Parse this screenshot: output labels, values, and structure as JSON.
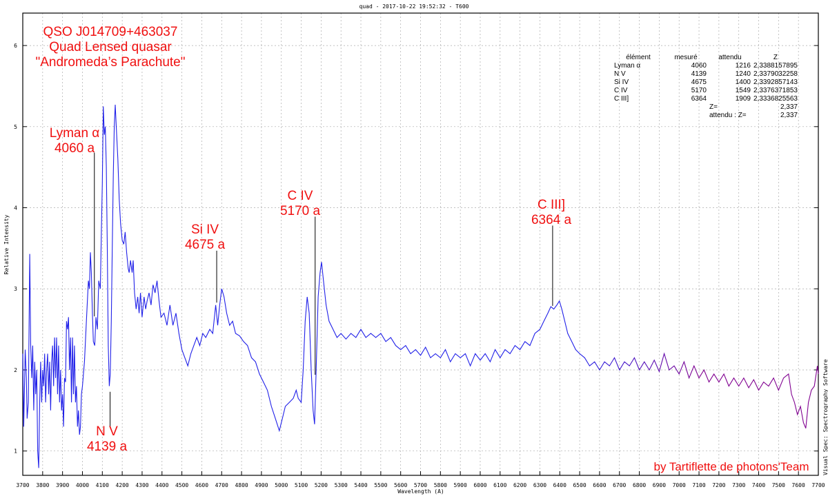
{
  "header": "quad - 2017-10-22 19:52:32 - T600",
  "software": "Visual Spec: Spectrography Software",
  "footer": "by Tartiflette de photons'Team",
  "titles": [
    "QSO J014709+463037",
    "Quad Lensed quasar",
    "\"Andromeda’s Parachute\""
  ],
  "table": {
    "headers": [
      "élément",
      "mesuré",
      "attendu",
      "Z"
    ],
    "rows": [
      [
        "Lyman α",
        "4060",
        "1216",
        "2,3388157895"
      ],
      [
        "N V",
        "4139",
        "1240",
        "2,3379032258"
      ],
      [
        "Si IV",
        "4675",
        "1400",
        "2,3392857143"
      ],
      [
        "C IV",
        "5170",
        "1549",
        "2,3376371853"
      ],
      [
        "C III]",
        "6364",
        "1909",
        "2,3336825563"
      ]
    ],
    "z_label": "Z=",
    "z_value": "2,337",
    "expected_label": "attendu : Z=",
    "expected_value": "2,337"
  },
  "chart_data": {
    "type": "line",
    "title": "quad - 2017-10-22 19:52:32 - T600",
    "xlabel": "Wavelength (A)",
    "ylabel": "Relative Intensity",
    "xlim": [
      3700,
      7700
    ],
    "ylim": [
      0.7,
      6.4
    ],
    "xticks": [
      3700,
      3800,
      3900,
      4000,
      4100,
      4200,
      4300,
      4400,
      4500,
      4600,
      4700,
      4800,
      4900,
      5000,
      5100,
      5200,
      5300,
      5400,
      5500,
      5600,
      5700,
      5800,
      5900,
      6000,
      6100,
      6200,
      6300,
      6400,
      6500,
      6600,
      6700,
      6800,
      6900,
      7000,
      7100,
      7200,
      7300,
      7400,
      7500,
      7600,
      7700
    ],
    "yticks": [
      1,
      2,
      3,
      4,
      5,
      6
    ],
    "grid": true,
    "colors": {
      "line_start": "#2020e8",
      "line_end": "#800090",
      "annotation": "#f01010",
      "marker": "#000000"
    },
    "annotations": [
      {
        "label": "Lyman α",
        "sub": "4060 a",
        "wavelength": 4060,
        "y_from": 2.66,
        "y_to": 4.68
      },
      {
        "label": "N V",
        "sub": "4139 a",
        "wavelength": 4139,
        "y_from": 1.3,
        "y_to": 1.73
      },
      {
        "label": "Si IV",
        "sub": "4675 a",
        "wavelength": 4675,
        "y_from": 2.83,
        "y_to": 3.47
      },
      {
        "label": "C IV",
        "sub": "5170 a",
        "wavelength": 5170,
        "y_from": 1.94,
        "y_to": 3.89
      },
      {
        "label": "C III]",
        "sub": "6364 a",
        "wavelength": 6364,
        "y_from": 2.79,
        "y_to": 3.78
      }
    ],
    "points": [
      [
        3700,
        2.2
      ],
      [
        3705,
        1.3
      ],
      [
        3712,
        2.25
      ],
      [
        3718,
        1.9
      ],
      [
        3722,
        1.4
      ],
      [
        3728,
        1.6
      ],
      [
        3735,
        3.43
      ],
      [
        3740,
        2.3
      ],
      [
        3745,
        1.9
      ],
      [
        3750,
        2.3
      ],
      [
        3755,
        1.5
      ],
      [
        3760,
        2.1
      ],
      [
        3765,
        1.7
      ],
      [
        3770,
        2.0
      ],
      [
        3775,
        1.0
      ],
      [
        3780,
        0.79
      ],
      [
        3785,
        1.6
      ],
      [
        3790,
        2.1
      ],
      [
        3795,
        1.6
      ],
      [
        3800,
        2.0
      ],
      [
        3805,
        1.8
      ],
      [
        3810,
        2.2
      ],
      [
        3815,
        1.6
      ],
      [
        3820,
        2.0
      ],
      [
        3825,
        2.2
      ],
      [
        3830,
        1.7
      ],
      [
        3835,
        2.1
      ],
      [
        3840,
        1.5
      ],
      [
        3845,
        2.1
      ],
      [
        3850,
        2.3
      ],
      [
        3855,
        1.8
      ],
      [
        3860,
        2.4
      ],
      [
        3865,
        1.9
      ],
      [
        3870,
        2.4
      ],
      [
        3875,
        1.7
      ],
      [
        3880,
        2.3
      ],
      [
        3885,
        1.6
      ],
      [
        3890,
        2.0
      ],
      [
        3895,
        1.5
      ],
      [
        3900,
        1.7
      ],
      [
        3905,
        1.3
      ],
      [
        3910,
        1.9
      ],
      [
        3915,
        1.85
      ],
      [
        3920,
        2.6
      ],
      [
        3925,
        2.5
      ],
      [
        3930,
        2.65
      ],
      [
        3935,
        2.0
      ],
      [
        3940,
        2.4
      ],
      [
        3945,
        1.6
      ],
      [
        3950,
        2.4
      ],
      [
        3955,
        1.7
      ],
      [
        3960,
        2.3
      ],
      [
        3965,
        1.6
      ],
      [
        3970,
        1.8
      ],
      [
        3975,
        1.3
      ],
      [
        3980,
        1.5
      ],
      [
        3985,
        1.2
      ],
      [
        3990,
        1.3
      ],
      [
        3995,
        1.7
      ],
      [
        4000,
        1.8
      ],
      [
        4010,
        2.1
      ],
      [
        4020,
        2.6
      ],
      [
        4030,
        3.1
      ],
      [
        4035,
        3.0
      ],
      [
        4040,
        3.45
      ],
      [
        4045,
        3.2
      ],
      [
        4050,
        2.7
      ],
      [
        4055,
        2.35
      ],
      [
        4062,
        2.3
      ],
      [
        4068,
        2.65
      ],
      [
        4075,
        2.5
      ],
      [
        4082,
        3.1
      ],
      [
        4090,
        3.0
      ],
      [
        4095,
        3.7
      ],
      [
        4100,
        4.3
      ],
      [
        4105,
        5.25
      ],
      [
        4110,
        4.9
      ],
      [
        4115,
        5.0
      ],
      [
        4120,
        4.5
      ],
      [
        4125,
        3.5
      ],
      [
        4130,
        2.3
      ],
      [
        4135,
        1.8
      ],
      [
        4140,
        1.95
      ],
      [
        4145,
        2.6
      ],
      [
        4150,
        3.5
      ],
      [
        4155,
        4.4
      ],
      [
        4160,
        5.0
      ],
      [
        4165,
        5.27
      ],
      [
        4170,
        5.0
      ],
      [
        4178,
        4.6
      ],
      [
        4185,
        4.1
      ],
      [
        4192,
        3.8
      ],
      [
        4200,
        3.6
      ],
      [
        4208,
        3.55
      ],
      [
        4215,
        3.7
      ],
      [
        4222,
        3.45
      ],
      [
        4230,
        3.25
      ],
      [
        4235,
        3.2
      ],
      [
        4242,
        3.35
      ],
      [
        4250,
        3.2
      ],
      [
        4255,
        3.35
      ],
      [
        4262,
        2.95
      ],
      [
        4270,
        2.75
      ],
      [
        4278,
        2.9
      ],
      [
        4285,
        2.7
      ],
      [
        4292,
        2.95
      ],
      [
        4300,
        2.65
      ],
      [
        4310,
        2.9
      ],
      [
        4318,
        2.75
      ],
      [
        4325,
        2.85
      ],
      [
        4335,
        2.95
      ],
      [
        4345,
        2.8
      ],
      [
        4355,
        3.05
      ],
      [
        4365,
        2.95
      ],
      [
        4375,
        3.1
      ],
      [
        4385,
        2.85
      ],
      [
        4395,
        2.65
      ],
      [
        4410,
        2.7
      ],
      [
        4425,
        2.55
      ],
      [
        4440,
        2.8
      ],
      [
        4455,
        2.55
      ],
      [
        4470,
        2.7
      ],
      [
        4485,
        2.45
      ],
      [
        4500,
        2.25
      ],
      [
        4515,
        2.15
      ],
      [
        4530,
        2.05
      ],
      [
        4545,
        2.2
      ],
      [
        4560,
        2.3
      ],
      [
        4575,
        2.4
      ],
      [
        4590,
        2.3
      ],
      [
        4605,
        2.45
      ],
      [
        4620,
        2.4
      ],
      [
        4640,
        2.5
      ],
      [
        4655,
        2.45
      ],
      [
        4670,
        2.8
      ],
      [
        4680,
        2.55
      ],
      [
        4690,
        2.8
      ],
      [
        4700,
        3.0
      ],
      [
        4712,
        2.9
      ],
      [
        4725,
        2.7
      ],
      [
        4740,
        2.55
      ],
      [
        4755,
        2.6
      ],
      [
        4770,
        2.45
      ],
      [
        4790,
        2.42
      ],
      [
        4810,
        2.35
      ],
      [
        4830,
        2.3
      ],
      [
        4850,
        2.15
      ],
      [
        4870,
        2.1
      ],
      [
        4890,
        1.95
      ],
      [
        4910,
        1.85
      ],
      [
        4930,
        1.75
      ],
      [
        4950,
        1.55
      ],
      [
        4970,
        1.4
      ],
      [
        4990,
        1.25
      ],
      [
        5005,
        1.4
      ],
      [
        5020,
        1.55
      ],
      [
        5040,
        1.6
      ],
      [
        5060,
        1.65
      ],
      [
        5075,
        1.75
      ],
      [
        5085,
        1.65
      ],
      [
        5100,
        1.6
      ],
      [
        5110,
        2.0
      ],
      [
        5120,
        2.6
      ],
      [
        5130,
        2.9
      ],
      [
        5140,
        2.7
      ],
      [
        5150,
        2.0
      ],
      [
        5160,
        1.5
      ],
      [
        5167,
        1.33
      ],
      [
        5175,
        2.0
      ],
      [
        5185,
        2.9
      ],
      [
        5195,
        3.2
      ],
      [
        5202,
        3.33
      ],
      [
        5212,
        3.1
      ],
      [
        5225,
        2.8
      ],
      [
        5240,
        2.6
      ],
      [
        5260,
        2.5
      ],
      [
        5280,
        2.4
      ],
      [
        5300,
        2.45
      ],
      [
        5325,
        2.38
      ],
      [
        5350,
        2.45
      ],
      [
        5375,
        2.4
      ],
      [
        5400,
        2.5
      ],
      [
        5425,
        2.4
      ],
      [
        5450,
        2.45
      ],
      [
        5475,
        2.4
      ],
      [
        5500,
        2.45
      ],
      [
        5525,
        2.35
      ],
      [
        5550,
        2.4
      ],
      [
        5575,
        2.3
      ],
      [
        5600,
        2.25
      ],
      [
        5625,
        2.3
      ],
      [
        5650,
        2.2
      ],
      [
        5675,
        2.25
      ],
      [
        5700,
        2.18
      ],
      [
        5725,
        2.28
      ],
      [
        5750,
        2.15
      ],
      [
        5775,
        2.2
      ],
      [
        5800,
        2.15
      ],
      [
        5825,
        2.25
      ],
      [
        5850,
        2.1
      ],
      [
        5875,
        2.2
      ],
      [
        5900,
        2.15
      ],
      [
        5925,
        2.2
      ],
      [
        5950,
        2.05
      ],
      [
        5975,
        2.2
      ],
      [
        6000,
        2.12
      ],
      [
        6025,
        2.2
      ],
      [
        6050,
        2.1
      ],
      [
        6075,
        2.25
      ],
      [
        6100,
        2.15
      ],
      [
        6125,
        2.25
      ],
      [
        6150,
        2.2
      ],
      [
        6175,
        2.3
      ],
      [
        6200,
        2.25
      ],
      [
        6225,
        2.35
      ],
      [
        6250,
        2.3
      ],
      [
        6275,
        2.45
      ],
      [
        6300,
        2.5
      ],
      [
        6320,
        2.6
      ],
      [
        6340,
        2.7
      ],
      [
        6355,
        2.78
      ],
      [
        6370,
        2.75
      ],
      [
        6385,
        2.8
      ],
      [
        6398,
        2.85
      ],
      [
        6410,
        2.75
      ],
      [
        6425,
        2.6
      ],
      [
        6440,
        2.45
      ],
      [
        6460,
        2.35
      ],
      [
        6480,
        2.25
      ],
      [
        6500,
        2.2
      ],
      [
        6525,
        2.15
      ],
      [
        6550,
        2.05
      ],
      [
        6575,
        2.1
      ],
      [
        6600,
        2.0
      ],
      [
        6625,
        2.1
      ],
      [
        6650,
        2.05
      ],
      [
        6675,
        2.15
      ],
      [
        6700,
        2.0
      ],
      [
        6725,
        2.1
      ],
      [
        6750,
        2.05
      ],
      [
        6775,
        2.15
      ],
      [
        6800,
        2.0
      ],
      [
        6825,
        2.1
      ],
      [
        6850,
        2.0
      ],
      [
        6875,
        2.12
      ],
      [
        6900,
        1.98
      ],
      [
        6925,
        2.2
      ],
      [
        6950,
        2.0
      ],
      [
        6975,
        2.05
      ],
      [
        7000,
        1.95
      ],
      [
        7025,
        2.1
      ],
      [
        7050,
        1.9
      ],
      [
        7075,
        2.05
      ],
      [
        7100,
        1.9
      ],
      [
        7125,
        2.0
      ],
      [
        7150,
        1.85
      ],
      [
        7175,
        1.95
      ],
      [
        7200,
        1.85
      ],
      [
        7225,
        1.95
      ],
      [
        7250,
        1.8
      ],
      [
        7275,
        1.9
      ],
      [
        7300,
        1.8
      ],
      [
        7325,
        1.9
      ],
      [
        7350,
        1.78
      ],
      [
        7375,
        1.88
      ],
      [
        7400,
        1.75
      ],
      [
        7425,
        1.85
      ],
      [
        7450,
        1.8
      ],
      [
        7475,
        1.9
      ],
      [
        7500,
        1.75
      ],
      [
        7525,
        1.9
      ],
      [
        7550,
        1.95
      ],
      [
        7565,
        1.7
      ],
      [
        7580,
        1.6
      ],
      [
        7595,
        1.45
      ],
      [
        7610,
        1.55
      ],
      [
        7625,
        1.35
      ],
      [
        7637,
        1.28
      ],
      [
        7650,
        1.6
      ],
      [
        7665,
        1.75
      ],
      [
        7680,
        1.8
      ],
      [
        7695,
        2.05
      ],
      [
        7700,
        1.95
      ]
    ]
  }
}
